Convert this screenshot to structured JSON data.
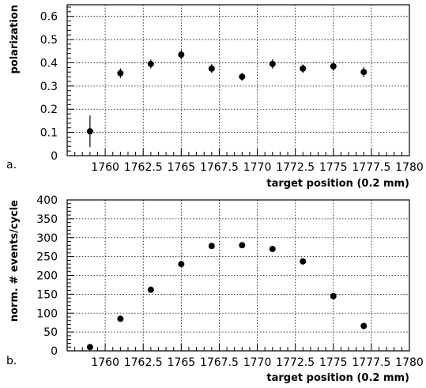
{
  "chart_data": [
    {
      "type": "scatter",
      "panel_tag": "a.",
      "xlabel": "target position (0.2 mm)",
      "ylabel": "polarization",
      "xlim": [
        1757.5,
        1780
      ],
      "ylim": [
        0,
        0.65
      ],
      "x_ticks": [
        1760,
        1762.5,
        1765,
        1767.5,
        1770,
        1772.5,
        1775,
        1777.5,
        1780
      ],
      "x_tick_labels": [
        "1760",
        "1762.5",
        "1765",
        "1767.5",
        "1770",
        "1772.5",
        "1775",
        "1777.5",
        "1780"
      ],
      "y_ticks": [
        0,
        0.1,
        0.2,
        0.3,
        0.4,
        0.5,
        0.6
      ],
      "y_tick_labels": [
        "0",
        "0.1",
        "0.2",
        "0.3",
        "0.4",
        "0.5",
        "0.6"
      ],
      "grid": true,
      "series": [
        {
          "x": [
            1759,
            1761,
            1763,
            1765,
            1767,
            1769,
            1771,
            1773,
            1775,
            1777
          ],
          "y": [
            0.105,
            0.355,
            0.395,
            0.435,
            0.375,
            0.34,
            0.395,
            0.375,
            0.385,
            0.36
          ],
          "yerr": [
            0.068,
            0.021,
            0.019,
            0.02,
            0.019,
            0.017,
            0.02,
            0.018,
            0.02,
            0.022
          ]
        }
      ]
    },
    {
      "type": "scatter",
      "panel_tag": "b.",
      "xlabel": "target position (0.2 mm)",
      "ylabel": "norm. # events/cycle",
      "xlim": [
        1757.5,
        1780
      ],
      "ylim": [
        0,
        400
      ],
      "x_ticks": [
        1760,
        1762.5,
        1765,
        1767.5,
        1770,
        1772.5,
        1775,
        1777.5,
        1780
      ],
      "x_tick_labels": [
        "1760",
        "1762.5",
        "1765",
        "1767.5",
        "1770",
        "1772.5",
        "1775",
        "1777.5",
        "1780"
      ],
      "y_ticks": [
        0,
        50,
        100,
        150,
        200,
        250,
        300,
        350,
        400
      ],
      "y_tick_labels": [
        "0",
        "50",
        "100",
        "150",
        "200",
        "250",
        "300",
        "350",
        "400"
      ],
      "grid": true,
      "series": [
        {
          "x": [
            1759,
            1761,
            1763,
            1765,
            1767,
            1769,
            1771,
            1773,
            1775,
            1777
          ],
          "y": [
            10,
            85,
            162,
            230,
            278,
            280,
            270,
            237,
            145,
            66
          ]
        }
      ]
    }
  ]
}
